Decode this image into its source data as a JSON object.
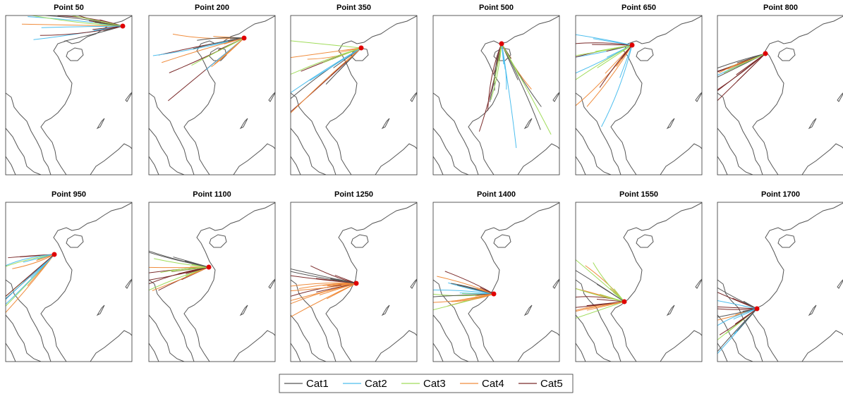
{
  "panels": [
    {
      "title": "Point 50"
    },
    {
      "title": "Point 200"
    },
    {
      "title": "Point 350"
    },
    {
      "title": "Point 500"
    },
    {
      "title": "Point 650"
    },
    {
      "title": "Point 800"
    },
    {
      "title": "Point 950"
    },
    {
      "title": "Point 1100"
    },
    {
      "title": "Point 1250"
    },
    {
      "title": "Point 1400"
    },
    {
      "title": "Point 1550"
    },
    {
      "title": "Point 1700"
    }
  ],
  "legend": [
    {
      "name": "Cat1",
      "color": "#555555"
    },
    {
      "name": "Cat2",
      "color": "#4dbeee"
    },
    {
      "name": "Cat3",
      "color": "#a0dc5a"
    },
    {
      "name": "Cat4",
      "color": "#f08c3c"
    },
    {
      "name": "Cat5",
      "color": "#7a2a2a"
    }
  ]
}
